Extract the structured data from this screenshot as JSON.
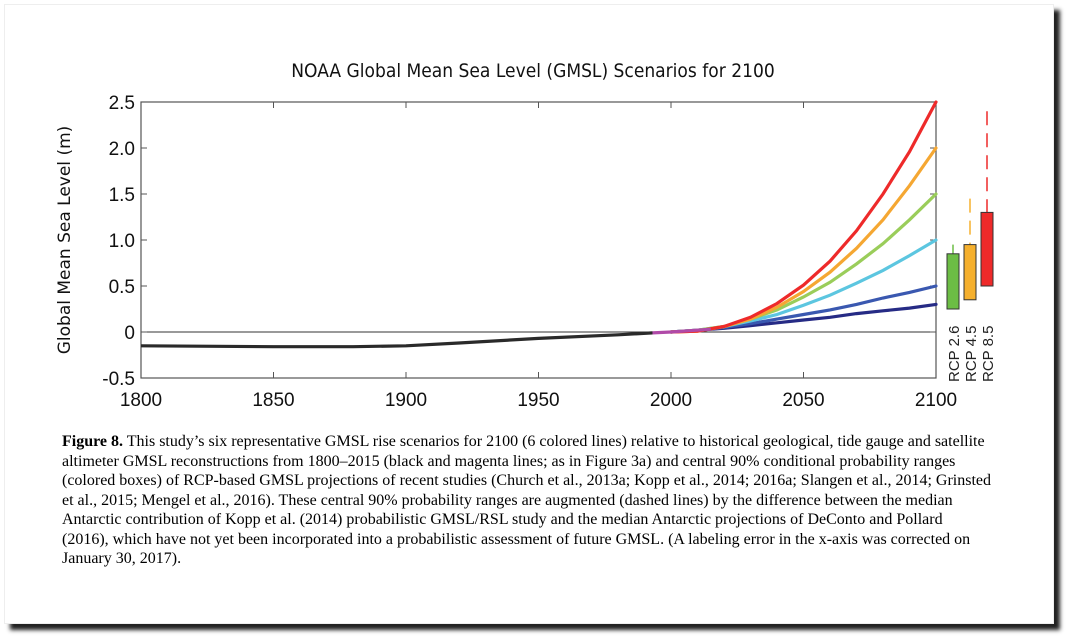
{
  "chart_data": {
    "type": "line",
    "title": "NOAA Global Mean Sea Level (GMSL) Scenarios for 2100",
    "xlabel": "",
    "ylabel": "Global Mean Sea Level (m)",
    "xlim": [
      1800,
      2100
    ],
    "ylim": [
      -0.5,
      2.5
    ],
    "xticks": [
      "1800",
      "1850",
      "1900",
      "1950",
      "2000",
      "2050",
      "2100"
    ],
    "yticks": [
      "-0.5",
      "0",
      "0.5",
      "1.0",
      "1.5",
      "2.0",
      "2.5"
    ],
    "grid": false,
    "historical": {
      "color": "#2a2a2a",
      "x": [
        1800,
        1850,
        1880,
        1900,
        1920,
        1950,
        1980,
        1993
      ],
      "y": [
        -0.15,
        -0.16,
        -0.16,
        -0.15,
        -0.12,
        -0.07,
        -0.03,
        -0.01
      ]
    },
    "satellite": {
      "color": "#b04aa8",
      "x": [
        1993,
        2000,
        2015
      ],
      "y": [
        -0.01,
        0,
        0.03
      ]
    },
    "scenario_x": [
      2000,
      2010,
      2020,
      2030,
      2040,
      2050,
      2060,
      2070,
      2080,
      2090,
      2100
    ],
    "series": [
      {
        "color": "#262b85",
        "values": [
          0,
          0.02,
          0.04,
          0.07,
          0.1,
          0.13,
          0.16,
          0.2,
          0.23,
          0.26,
          0.3
        ]
      },
      {
        "color": "#3a58b0",
        "values": [
          0,
          0.02,
          0.05,
          0.09,
          0.14,
          0.19,
          0.24,
          0.3,
          0.37,
          0.43,
          0.5
        ]
      },
      {
        "color": "#5cc6e0",
        "values": [
          0,
          0.02,
          0.06,
          0.12,
          0.19,
          0.29,
          0.4,
          0.53,
          0.67,
          0.83,
          1.0
        ]
      },
      {
        "color": "#9acd5a",
        "values": [
          0,
          0.02,
          0.06,
          0.14,
          0.24,
          0.38,
          0.54,
          0.74,
          0.96,
          1.22,
          1.5
        ]
      },
      {
        "color": "#f5a732",
        "values": [
          0,
          0.01,
          0.06,
          0.14,
          0.27,
          0.44,
          0.65,
          0.91,
          1.22,
          1.59,
          2.0
        ]
      },
      {
        "color": "#ee2a2a",
        "values": [
          0,
          0.01,
          0.06,
          0.16,
          0.31,
          0.51,
          0.77,
          1.1,
          1.5,
          1.96,
          2.5
        ]
      }
    ],
    "boxes": [
      {
        "label": "RCP 2.6",
        "color": "#6cbd45",
        "low": 0.25,
        "high": 0.85,
        "whisker_top": 0.95,
        "dashed": false
      },
      {
        "label": "RCP 4.5",
        "color": "#f5b02e",
        "low": 0.35,
        "high": 0.95,
        "whisker_top": 1.45,
        "dashed": true
      },
      {
        "label": "RCP 8.5",
        "color": "#ee2a2a",
        "low": 0.5,
        "high": 1.3,
        "whisker_top": 2.4,
        "dashed": true
      }
    ]
  },
  "caption": {
    "label": "Figure 8.",
    "text": " This study’s six representative GMSL rise scenarios for 2100 (6 colored lines) relative to historical geological, tide gauge and satellite altimeter GMSL reconstructions from 1800–2015 (black and magenta lines; as in Figure 3a) and central 90% conditional probability ranges (colored boxes) of RCP-based GMSL projections of recent studies (Church et al., 2013a; Kopp et al., 2014; 2016a; Slangen et al., 2014; Grinsted et al., 2015; Mengel et al., 2016). These central 90% probability ranges are augmented (dashed lines) by the difference between the median Antarctic contribution of Kopp et al. (2014) probabilistic GMSL/RSL study and the median Antarctic projections of DeConto and Pollard (2016), which have not yet been incorporated into a probabilistic assessment of future GMSL. (A labeling error in the x-axis was corrected on January 30, 2017)."
  }
}
